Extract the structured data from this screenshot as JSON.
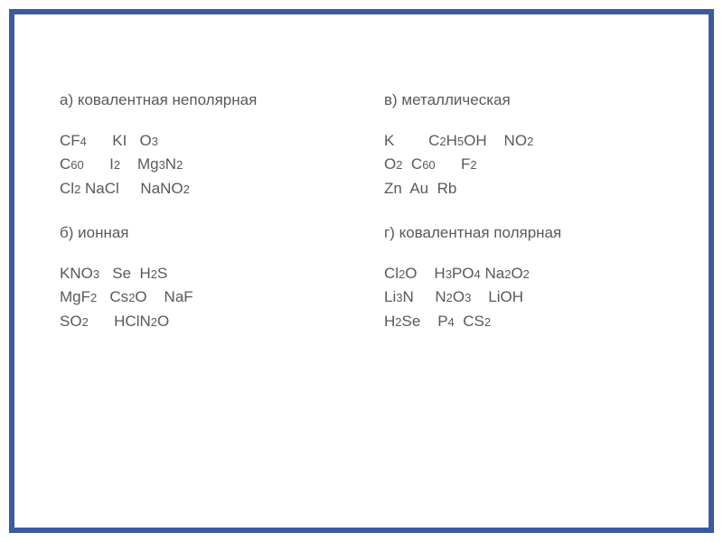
{
  "style": {
    "border_color": "#3d5a9e",
    "border_width": 6,
    "text_color": "#595959",
    "title_fontsize": 17,
    "formula_fontsize": 17,
    "background_color": "#ffffff"
  },
  "left_column": {
    "section_a": {
      "title": "а) ковалентная неполярная",
      "row1_cf4": "CF",
      "row1_cf4_sub": "4",
      "row1_ki": "      KI   O",
      "row1_o3_sub": "3",
      "row2_c60": "C",
      "row2_c60_sub": "60",
      "row2_i2": "      I",
      "row2_i2_sub": "2",
      "row2_mg3n2_a": "    Mg",
      "row2_mg3n2_sub1": "3",
      "row2_mg3n2_b": "N",
      "row2_mg3n2_sub2": "2",
      "row3_cl2": "Cl",
      "row3_cl2_sub": "2",
      "row3_nacl": " NaCl     NaNO",
      "row3_nano2_sub": "2"
    },
    "section_b": {
      "title": "б) ионная",
      "row1_kno3": "KNO",
      "row1_kno3_sub": "3",
      "row1_se_h2s": "   Se  H",
      "row1_h2s_sub": "2",
      "row1_s": "S",
      "row2_mgf2": "MgF",
      "row2_mgf2_sub": "2",
      "row2_cs2o": "   Cs",
      "row2_cs2o_sub": "2",
      "row2_o_naf": "O    NaF",
      "row3_so2": "SO",
      "row3_so2_sub": "2",
      "row3_hcl_n2o": "      HClN",
      "row3_n2o_sub": "2",
      "row3_o": "O"
    }
  },
  "right_column": {
    "section_v": {
      "title": "в) металлическая",
      "row1_k": "K        C",
      "row1_c2h5oh_sub1": "2",
      "row1_h": "H",
      "row1_c2h5oh_sub2": "5",
      "row1_oh_no2": "OH    NO",
      "row1_no2_sub": "2",
      "row2_o2": "O",
      "row2_o2_sub": "2",
      "row2_c60": "  C",
      "row2_c60_sub": "60",
      "row2_f2": "      F",
      "row2_f2_sub": "2",
      "row3": "Zn  Au  Rb"
    },
    "section_g": {
      "title": "г) ковалентная полярная",
      "row1_cl2o": "Cl",
      "row1_cl2o_sub": "2",
      "row1_o_h3po4": "O    H",
      "row1_h3po4_sub1": "3",
      "row1_po4": "PO",
      "row1_h3po4_sub2": "4",
      "row1_na2o2": " Na",
      "row1_na2o2_sub1": "2",
      "row1_o2": "O",
      "row1_na2o2_sub2": "2",
      "row2_li3n": "Li",
      "row2_li3n_sub": "3",
      "row2_n_n2o3": "N     N",
      "row2_n2o3_sub1": "2",
      "row2_o3": "O",
      "row2_n2o3_sub2": "3",
      "row2_lioh": "    LiOH",
      "row3_h2se": "H",
      "row3_h2se_sub": "2",
      "row3_se_p4": "Se    P",
      "row3_p4_sub": "4",
      "row3_cs2": "  CS",
      "row3_cs2_sub": "2"
    }
  }
}
